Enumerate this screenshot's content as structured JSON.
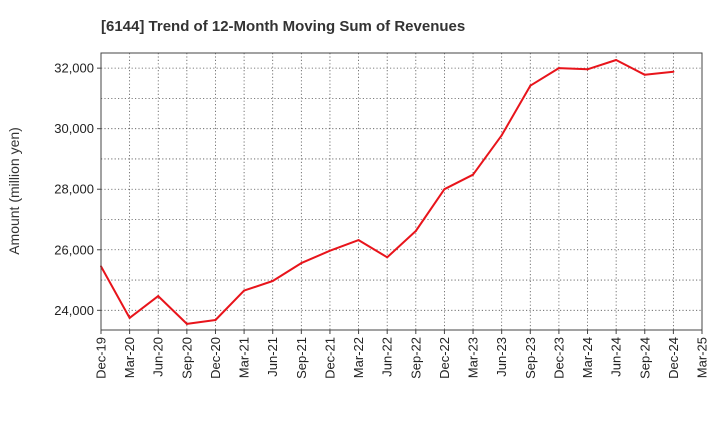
{
  "chart_data": {
    "type": "line",
    "title": "[6144]  Trend of 12-Month Moving Sum of Revenues",
    "xlabel": "",
    "ylabel": "Amount (million yen)",
    "categories": [
      "Dec-19",
      "Mar-20",
      "Jun-20",
      "Sep-20",
      "Dec-20",
      "Mar-21",
      "Jun-21",
      "Sep-21",
      "Dec-21",
      "Mar-22",
      "Jun-22",
      "Sep-22",
      "Dec-22",
      "Mar-23",
      "Jun-23",
      "Sep-23",
      "Dec-23",
      "Mar-24",
      "Jun-24",
      "Sep-24",
      "Dec-24",
      "Mar-25"
    ],
    "series": [
      {
        "values": [
          25450,
          23750,
          24470,
          23550,
          23680,
          24650,
          24970,
          25560,
          25970,
          26320,
          25750,
          26620,
          28000,
          28480,
          29780,
          31420,
          32000,
          31960,
          32270,
          31780,
          31880,
          null
        ],
        "color": "#e8141b"
      }
    ],
    "ylim": [
      23350,
      32500
    ],
    "yticks": [
      24000,
      26000,
      28000,
      30000,
      32000
    ],
    "ytick_labels": [
      "24,000",
      "26,000",
      "28,000",
      "30,000",
      "32,000"
    ],
    "grid": true,
    "grid_style": "dotted",
    "legend": "none"
  }
}
